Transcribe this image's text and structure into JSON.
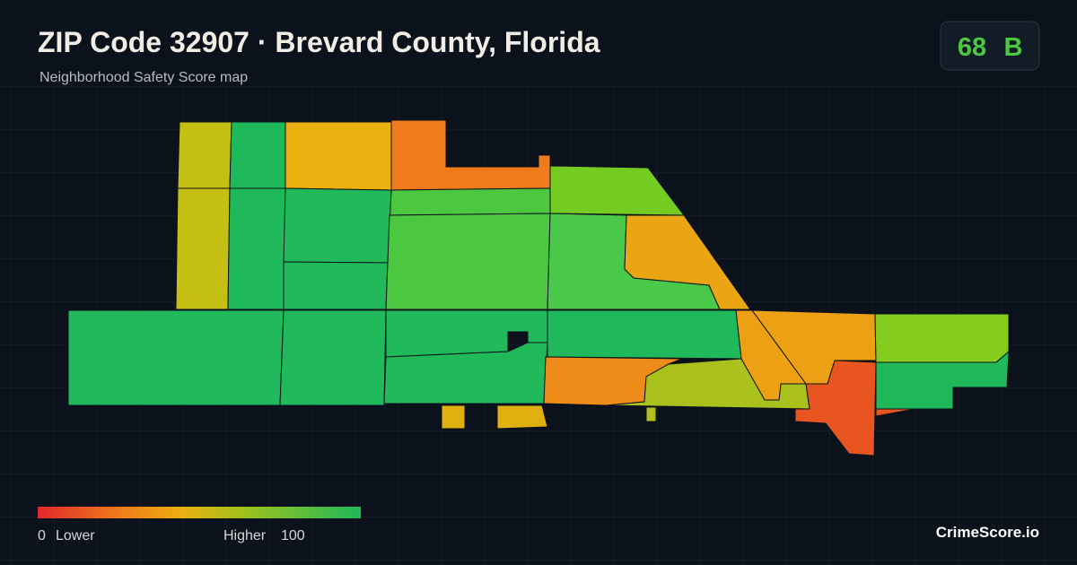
{
  "header": {
    "title": "ZIP Code 32907 · Brevard County, Florida",
    "subtitle": "Neighborhood Safety Score map"
  },
  "score": {
    "value": 68,
    "grade": "B"
  },
  "legend": {
    "min": 0,
    "min_label": "Lower",
    "max_label": "Higher",
    "max": 100
  },
  "brand": "CrimeScore.io"
}
